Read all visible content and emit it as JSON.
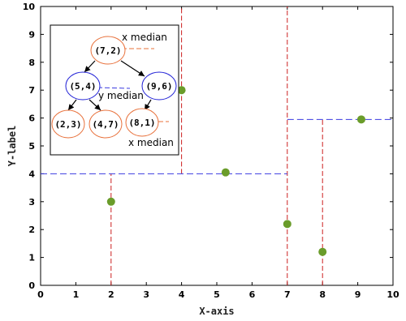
{
  "chart_data": {
    "type": "scatter",
    "title": "",
    "xlabel": "X-axis",
    "ylabel": "Y-label",
    "xlim": [
      0,
      10
    ],
    "ylim": [
      0,
      10
    ],
    "xticks": [
      "0",
      "1",
      "2",
      "3",
      "4",
      "5",
      "6",
      "7",
      "8",
      "9",
      "10"
    ],
    "yticks": [
      "0",
      "1",
      "2",
      "3",
      "4",
      "5",
      "6",
      "7",
      "8",
      "9",
      "10"
    ],
    "grid": false,
    "points": [
      {
        "x": 2,
        "y": 3
      },
      {
        "x": 4,
        "y": 7
      },
      {
        "x": 5.25,
        "y": 4.05
      },
      {
        "x": 7,
        "y": 2.2
      },
      {
        "x": 8,
        "y": 1.2
      },
      {
        "x": 9.1,
        "y": 5.95
      }
    ],
    "vertical_splits": [
      {
        "x": 7,
        "y_from": 0,
        "y_to": 10
      },
      {
        "x": 4,
        "y_from": 4,
        "y_to": 10
      },
      {
        "x": 2,
        "y_from": 0,
        "y_to": 4
      },
      {
        "x": 8,
        "y_from": 0,
        "y_to": 5.95
      }
    ],
    "horizontal_splits": [
      {
        "y": 4,
        "x_from": 0,
        "x_to": 7
      },
      {
        "y": 5.95,
        "x_from": 7,
        "x_to": 10
      }
    ],
    "inset_tree": {
      "nodes": [
        {
          "id": "root",
          "label": "(7,2)",
          "color": "#e8703a"
        },
        {
          "id": "l",
          "label": "(5,4)",
          "color": "#1f1fd6"
        },
        {
          "id": "r",
          "label": "(9,6)",
          "color": "#1f1fd6"
        },
        {
          "id": "ll",
          "label": "(2,3)",
          "color": "#e8703a"
        },
        {
          "id": "lr",
          "label": "(4,7)",
          "color": "#e8703a"
        },
        {
          "id": "rl",
          "label": "(8,1)",
          "color": "#e8703a"
        }
      ],
      "edges": [
        [
          "root",
          "l"
        ],
        [
          "root",
          "r"
        ],
        [
          "l",
          "ll"
        ],
        [
          "l",
          "lr"
        ],
        [
          "r",
          "rl"
        ]
      ],
      "notes": [
        "x median",
        "y median",
        "x median"
      ]
    },
    "colors": {
      "point": "#6a9c2a",
      "vertical_split": "#cc1f1f",
      "horizontal_split": "#3a3ae0",
      "x_split_node": "#e8703a",
      "y_split_node": "#1f1fd6"
    }
  }
}
